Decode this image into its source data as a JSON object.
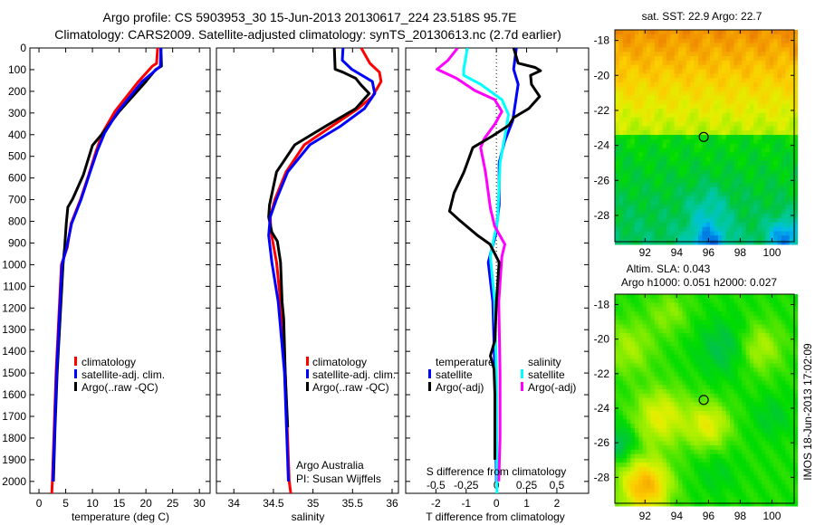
{
  "header": {
    "title_line1": "Argo profile: CS 5903953_30 15-Jun-2013 20130617_224 23.518S 95.7E",
    "title_line2": "Climatology: CARS2009. Satellite-adjusted climatology: synTS_20130613.nc (2.7d earlier)"
  },
  "credits": {
    "line1": "Argo Australia",
    "line2": "PI: Susan Wijffels"
  },
  "timestamp": "IMOS 18-Jun-2013 17:02:09",
  "colors": {
    "climatology": "#ff0000",
    "satellite": "#0000ff",
    "argo": "#000000",
    "sal_satellite": "#00ffff",
    "sal_argo": "#ff00ff"
  },
  "chart_data": [
    {
      "type": "line",
      "name": "temperature-profile",
      "xlabel": "temperature (deg C)",
      "ylabel": "",
      "xlim": [
        -1.7,
        32
      ],
      "ylim": [
        2055,
        0
      ],
      "xticks": [
        "0",
        "5",
        "10",
        "15",
        "20",
        "25",
        "30"
      ],
      "yticks": [
        "0",
        "100",
        "200",
        "300",
        "400",
        "500",
        "600",
        "700",
        "800",
        "900",
        "1000",
        "1100",
        "1200",
        "1300",
        "1400",
        "1500",
        "1600",
        "1700",
        "1800",
        "1900",
        "2000"
      ],
      "legend": [
        "climatology",
        "satellite-adj. clim.",
        "Argo(..raw -QC)"
      ],
      "series": [
        {
          "name": "climatology",
          "color": "#ff0000",
          "depth": [
            0,
            71,
            84,
            155,
            293,
            391,
            475,
            585,
            697,
            810,
            920,
            1000,
            1500,
            2000,
            2055
          ],
          "values": [
            22.2,
            22.0,
            21.2,
            18.6,
            14.2,
            11.9,
            10.7,
            9.3,
            7.8,
            6.0,
            5.3,
            4.2,
            3.2,
            2.5,
            2.4
          ]
        },
        {
          "name": "Argo(..raw -QC)",
          "color": "#000000",
          "depth": [
            0,
            84,
            100,
            155,
            293,
            391,
            450,
            585,
            697,
            735,
            810,
            920,
            1000,
            1500,
            1750,
            2000
          ],
          "values": [
            22.8,
            22.9,
            21.8,
            20.0,
            15.0,
            12.0,
            10.0,
            8.3,
            6.3,
            5.4,
            5.1,
            4.8,
            4.5,
            3.4,
            3.0,
            2.7
          ]
        },
        {
          "name": "satellite-adj. clim.",
          "color": "#0000ff",
          "depth": [
            0,
            84,
            155,
            293,
            391,
            475,
            585,
            697,
            810,
            920,
            1000,
            1500,
            2000
          ],
          "values": [
            22.8,
            22.7,
            19.3,
            14.8,
            12.3,
            10.9,
            9.4,
            7.9,
            6.1,
            5.2,
            4.3,
            3.3,
            2.6
          ]
        }
      ]
    },
    {
      "type": "line",
      "name": "salinity-profile",
      "xlabel": "salinity",
      "xlim": [
        33.78,
        36.08
      ],
      "ylim": [
        2055,
        0
      ],
      "xticks": [
        "34",
        "34.5",
        "35",
        "35.5",
        "36"
      ],
      "legend": [
        "climatology",
        "satellite-adj. clim.",
        "Argo(..raw -QC)"
      ],
      "series": [
        {
          "name": "climatology",
          "color": "#ff0000",
          "depth": [
            0,
            71,
            112,
            155,
            224,
            280,
            363,
            447,
            572,
            697,
            780,
            850,
            989,
            1170,
            1500,
            2000,
            2055
          ],
          "values": [
            35.61,
            35.72,
            35.84,
            35.86,
            35.75,
            35.57,
            35.23,
            34.89,
            34.66,
            34.52,
            34.46,
            34.47,
            34.54,
            34.59,
            34.65,
            34.7,
            34.72
          ]
        },
        {
          "name": "Argo(..raw -QC)",
          "color": "#000000",
          "depth": [
            0,
            98,
            112,
            140,
            168,
            210,
            280,
            363,
            447,
            572,
            725,
            780,
            850,
            892,
            989,
            1170,
            1250,
            1500,
            1750
          ],
          "values": [
            35.27,
            35.28,
            35.38,
            35.54,
            35.6,
            35.71,
            35.54,
            35.15,
            34.77,
            34.54,
            34.45,
            34.44,
            34.48,
            34.55,
            34.59,
            34.61,
            34.63,
            34.65,
            34.68
          ]
        },
        {
          "name": "satellite-adj. clim.",
          "color": "#0000ff",
          "depth": [
            0,
            57,
            98,
            155,
            210,
            280,
            363,
            447,
            572,
            697,
            780,
            864,
            989,
            1170,
            1500,
            2000
          ],
          "values": [
            35.38,
            35.37,
            35.49,
            35.75,
            35.78,
            35.65,
            35.34,
            34.96,
            34.68,
            34.54,
            34.46,
            34.44,
            34.48,
            34.56,
            34.64,
            34.69
          ]
        }
      ]
    },
    {
      "type": "line",
      "name": "difference-profile",
      "xlabel": "T difference from climatology",
      "xlabel2": "S difference from climatology",
      "xlim": [
        -3.0,
        3.05
      ],
      "xlim_salinity": [
        -0.75,
        0.7625
      ],
      "ylim": [
        2055,
        0
      ],
      "xticks": [
        "-2",
        "-1",
        "0",
        "1",
        "2"
      ],
      "xticks_salinity": [
        "-0.5",
        "-0.25",
        "0",
        "0.25",
        "0.5"
      ],
      "legend_temperature_title": "temperature",
      "legend_salinity_title": "salinity",
      "legend_temperature": [
        "satellite",
        "Argo(-adj)"
      ],
      "legend_salinity": [
        "satellite",
        "Argo(-adj)"
      ],
      "series": [
        {
          "name": "T satellite",
          "color": "#0000ff",
          "axis": "T",
          "depth": [
            0,
            98,
            168,
            252,
            335,
            432,
            530,
            725,
            864,
            989,
            1170,
            1500,
            2000
          ],
          "values": [
            0.66,
            0.57,
            0.72,
            0.63,
            0.54,
            0.27,
            0.09,
            0.09,
            -0.03,
            -0.27,
            -0.12,
            -0.05,
            0.0
          ]
        },
        {
          "name": "S satellite",
          "color": "#00ffff",
          "axis": "S",
          "depth": [
            0,
            98,
            126,
            168,
            238,
            307,
            377,
            530,
            795,
            962,
            1170,
            1500,
            2055
          ],
          "values": [
            -0.24,
            -0.27,
            -0.27,
            -0.13,
            0.045,
            0.1,
            0.08,
            0.03,
            0.01,
            -0.05,
            -0.015,
            0.0,
            0.005
          ]
        },
        {
          "name": "S Argo(-adj)",
          "color": "#ff00ff",
          "axis": "S",
          "depth": [
            0,
            57,
            98,
            140,
            196,
            238,
            293,
            349,
            418,
            460,
            572,
            739,
            822,
            906,
            962,
            1170,
            1500,
            1800,
            2000
          ],
          "values": [
            -0.32,
            -0.4,
            -0.49,
            -0.33,
            -0.18,
            -0.015,
            0.045,
            -0.01,
            -0.1,
            -0.13,
            -0.09,
            -0.05,
            -0.015,
            0.07,
            0.045,
            0.02,
            0.03,
            0.03,
            0.02
          ]
        },
        {
          "name": "T Argo(-adj)",
          "color": "#000000",
          "axis": "T",
          "depth": [
            0,
            70,
            90,
            105,
            126,
            168,
            224,
            280,
            321,
            356,
            405,
            460,
            572,
            669,
            753,
            795,
            864,
            906,
            989,
            1170,
            1350,
            1420,
            1480,
            1600,
            1900
          ],
          "values": [
            0.57,
            0.72,
            1.28,
            1.46,
            1.13,
            1.16,
            1.43,
            1.07,
            0.57,
            0.42,
            -0.12,
            -0.78,
            -1.07,
            -1.4,
            -1.55,
            -1.22,
            -0.63,
            -0.21,
            0.09,
            0.0,
            -0.05,
            -0.2,
            -0.08,
            -0.05,
            -0.05
          ]
        }
      ]
    },
    {
      "type": "heatmap",
      "name": "sst-map",
      "title": "sat. SST: 22.9 Argo: 22.7",
      "xlim": [
        90.1,
        101.4
      ],
      "ylim": [
        -29.5,
        -17.4
      ],
      "xticks": [
        "92",
        "94",
        "96",
        "98",
        "100"
      ],
      "yticks": [
        "-18",
        "-20",
        "-22",
        "-24",
        "-26",
        "-28"
      ],
      "marker": {
        "lon": 95.7,
        "lat": -23.518
      }
    },
    {
      "type": "heatmap",
      "name": "sla-map",
      "title_line1": "Altim. SLA: 0.043",
      "title_line2": "Argo h1000: 0.051 h2000: 0.027",
      "xlim": [
        90.1,
        101.4
      ],
      "ylim": [
        -29.5,
        -17.4
      ],
      "xticks": [
        "92",
        "94",
        "96",
        "98",
        "100"
      ],
      "yticks": [
        "-18",
        "-20",
        "-22",
        "-24",
        "-26",
        "-28"
      ],
      "marker": {
        "lon": 95.7,
        "lat": -23.518
      }
    }
  ]
}
